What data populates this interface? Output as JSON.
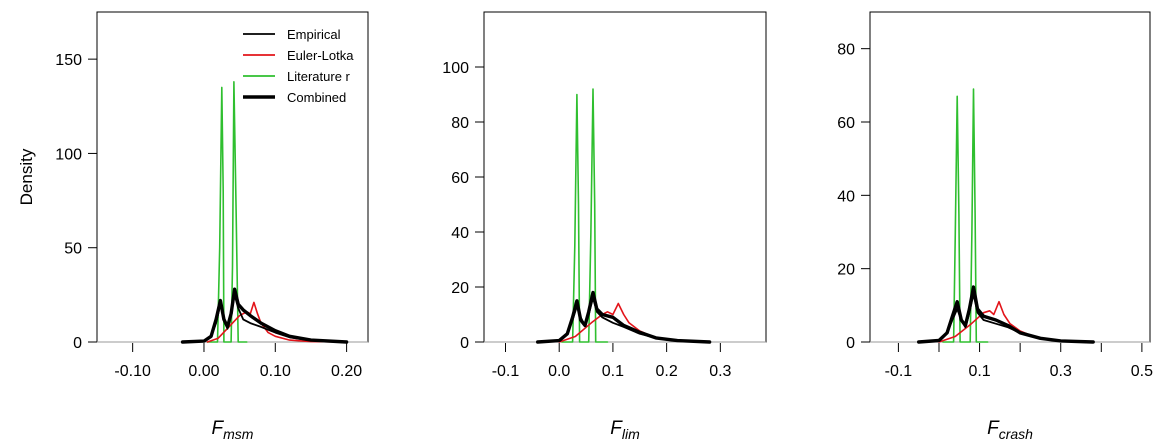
{
  "chart_data": [
    {
      "type": "line",
      "xlabel_main": "F",
      "xlabel_sub": "msm",
      "ylabel": "Density",
      "xlim": [
        -0.15,
        0.23
      ],
      "ylim": [
        0,
        175
      ],
      "xticks": [
        -0.1,
        0.0,
        0.1,
        0.2
      ],
      "xtick_labels": [
        "-0.10",
        "0.00",
        "0.10",
        "0.20"
      ],
      "yticks": [
        0,
        50,
        100,
        150
      ],
      "ytick_labels": [
        "0",
        "50",
        "100",
        "150"
      ],
      "legend": {
        "position": "top-right",
        "entries": [
          {
            "label": "Empirical",
            "color": "#000000"
          },
          {
            "label": "Euler-Lotka",
            "color": "#e3141a"
          },
          {
            "label": "Literature r",
            "color": "#2fbf2f"
          },
          {
            "label": "Combined",
            "color": "#000000"
          }
        ]
      },
      "series": [
        {
          "name": "Literature r",
          "color": "#2fbf2f",
          "x": [
            0.005,
            0.019,
            0.022,
            0.025,
            0.027,
            0.028,
            0.032,
            0.038,
            0.04,
            0.042,
            0.045,
            0.048,
            0.05,
            0.054,
            0.06
          ],
          "y": [
            0,
            0,
            50,
            135,
            80,
            0,
            0,
            0,
            40,
            138,
            70,
            0,
            0,
            0,
            0
          ]
        },
        {
          "name": "Euler-Lotka",
          "color": "#e3141a",
          "x": [
            0.005,
            0.02,
            0.035,
            0.05,
            0.06,
            0.065,
            0.07,
            0.075,
            0.08,
            0.09,
            0.1,
            0.12,
            0.15,
            0.2
          ],
          "y": [
            0,
            2,
            8,
            14,
            16,
            15,
            21,
            15,
            10,
            5,
            3,
            1,
            0.2,
            0
          ]
        },
        {
          "name": "Empirical",
          "color": "#000000",
          "x": [
            -0.03,
            0.0,
            0.01,
            0.017,
            0.023,
            0.028,
            0.033,
            0.038,
            0.043,
            0.048,
            0.055,
            0.065,
            0.08,
            0.1,
            0.12,
            0.15,
            0.2
          ],
          "y": [
            0,
            0.5,
            3,
            10,
            20,
            13,
            7,
            14,
            25,
            18,
            12,
            10,
            8,
            5,
            2.5,
            0.8,
            0
          ]
        },
        {
          "name": "Combined",
          "color": "#000000",
          "x": [
            -0.03,
            0.0,
            0.01,
            0.017,
            0.023,
            0.028,
            0.033,
            0.038,
            0.043,
            0.048,
            0.055,
            0.065,
            0.08,
            0.1,
            0.12,
            0.15,
            0.2
          ],
          "y": [
            0,
            0.5,
            3,
            12,
            22,
            12,
            8,
            15,
            28,
            20,
            17,
            14,
            10,
            6,
            3,
            1,
            0
          ]
        }
      ]
    },
    {
      "type": "line",
      "xlabel_main": "F",
      "xlabel_sub": "lim",
      "ylabel": "",
      "xlim": [
        -0.14,
        0.385
      ],
      "ylim": [
        0,
        120
      ],
      "xticks": [
        -0.1,
        0.0,
        0.1,
        0.2,
        0.3
      ],
      "xtick_labels": [
        "-0.1",
        "0.0",
        "0.1",
        "0.2",
        "0.3"
      ],
      "yticks": [
        0,
        20,
        40,
        60,
        80,
        100
      ],
      "ytick_labels": [
        "0",
        "20",
        "40",
        "60",
        "80",
        "100"
      ],
      "series": [
        {
          "name": "Literature r",
          "color": "#2fbf2f",
          "x": [
            0.005,
            0.025,
            0.029,
            0.033,
            0.036,
            0.038,
            0.048,
            0.055,
            0.059,
            0.063,
            0.066,
            0.068,
            0.078,
            0.09
          ],
          "y": [
            0,
            0,
            35,
            90,
            50,
            0,
            0,
            0,
            40,
            92,
            50,
            0,
            0,
            0
          ]
        },
        {
          "name": "Euler-Lotka",
          "color": "#e3141a",
          "x": [
            0.0,
            0.03,
            0.06,
            0.08,
            0.09,
            0.1,
            0.11,
            0.12,
            0.13,
            0.15,
            0.18,
            0.22,
            0.28
          ],
          "y": [
            0,
            2,
            7,
            10,
            11,
            10,
            14,
            10,
            7,
            4,
            1.5,
            0.3,
            0
          ]
        },
        {
          "name": "Empirical",
          "color": "#000000",
          "x": [
            -0.04,
            0.0,
            0.015,
            0.025,
            0.033,
            0.04,
            0.048,
            0.055,
            0.063,
            0.07,
            0.08,
            0.1,
            0.12,
            0.15,
            0.18,
            0.22,
            0.28
          ],
          "y": [
            0,
            0.5,
            3,
            8,
            13,
            9,
            6,
            10,
            16,
            11,
            9,
            7,
            5.5,
            3,
            1.5,
            0.5,
            0
          ]
        },
        {
          "name": "Combined",
          "color": "#000000",
          "x": [
            -0.04,
            0.0,
            0.015,
            0.025,
            0.033,
            0.04,
            0.048,
            0.055,
            0.063,
            0.07,
            0.08,
            0.1,
            0.12,
            0.15,
            0.18,
            0.22,
            0.28
          ],
          "y": [
            0,
            0.5,
            3,
            9,
            15,
            8,
            6,
            11,
            18,
            12,
            10,
            9,
            6,
            3.5,
            1.5,
            0.5,
            0
          ]
        }
      ]
    },
    {
      "type": "line",
      "xlabel_main": "F",
      "xlabel_sub": "crash",
      "ylabel": "",
      "xlim": [
        -0.17,
        0.52
      ],
      "ylim": [
        0,
        90
      ],
      "xticks": [
        -0.1,
        0.0,
        0.1,
        0.2,
        0.3,
        0.4,
        0.5
      ],
      "xtick_labels": [
        "-0.1",
        "",
        "0.1",
        "",
        "0.3",
        "",
        "0.5"
      ],
      "yticks": [
        0,
        20,
        40,
        60,
        80
      ],
      "ytick_labels": [
        "0",
        "20",
        "40",
        "60",
        "80"
      ],
      "series": [
        {
          "name": "Literature r",
          "color": "#2fbf2f",
          "x": [
            0.01,
            0.036,
            0.04,
            0.045,
            0.049,
            0.052,
            0.068,
            0.077,
            0.081,
            0.085,
            0.089,
            0.092,
            0.105,
            0.12
          ],
          "y": [
            0,
            0,
            28,
            67,
            35,
            0,
            0,
            0,
            30,
            69,
            35,
            0,
            0,
            0
          ]
        },
        {
          "name": "Euler-Lotka",
          "color": "#e3141a",
          "x": [
            0.0,
            0.04,
            0.08,
            0.11,
            0.125,
            0.135,
            0.148,
            0.16,
            0.175,
            0.2,
            0.24,
            0.3,
            0.38
          ],
          "y": [
            0,
            1.5,
            5,
            8,
            8.5,
            7.5,
            11,
            7.5,
            5,
            3,
            1.2,
            0.3,
            0
          ]
        },
        {
          "name": "Empirical",
          "color": "#000000",
          "x": [
            -0.05,
            0.0,
            0.02,
            0.033,
            0.045,
            0.055,
            0.065,
            0.075,
            0.085,
            0.095,
            0.11,
            0.14,
            0.17,
            0.2,
            0.25,
            0.3,
            0.38
          ],
          "y": [
            0,
            0.4,
            2.5,
            6,
            9,
            6,
            4,
            8,
            13,
            8,
            6,
            5,
            4,
            2.5,
            1,
            0.3,
            0
          ]
        },
        {
          "name": "Combined",
          "color": "#000000",
          "x": [
            -0.05,
            0.0,
            0.02,
            0.033,
            0.045,
            0.055,
            0.065,
            0.075,
            0.085,
            0.095,
            0.11,
            0.14,
            0.17,
            0.2,
            0.25,
            0.3,
            0.38
          ],
          "y": [
            0,
            0.4,
            2.5,
            7,
            11,
            6,
            4.5,
            9,
            15,
            9,
            7,
            6,
            4.5,
            2.5,
            1,
            0.3,
            0
          ]
        }
      ]
    }
  ]
}
